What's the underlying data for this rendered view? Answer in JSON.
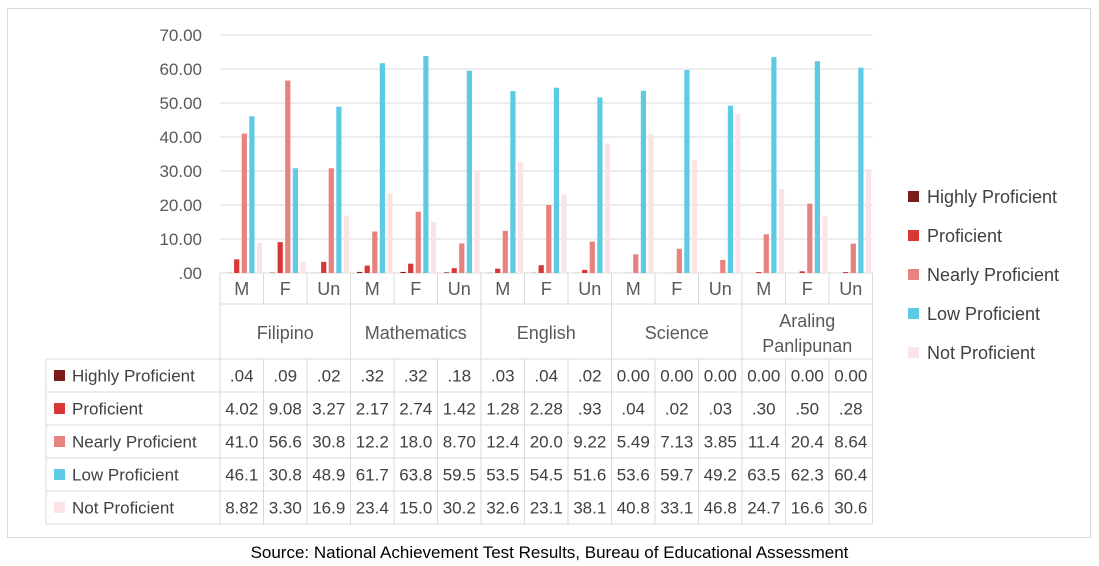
{
  "chart_data": {
    "type": "bar",
    "subjects": [
      "Filipino",
      "Mathematics",
      "English",
      "Science",
      "Araling Panlipunan"
    ],
    "subject_labels": [
      [
        "Filipino"
      ],
      [
        "Mathematics"
      ],
      [
        "English"
      ],
      [
        "Science"
      ],
      [
        "Araling",
        "Panlipunan"
      ]
    ],
    "subcategories": [
      "M",
      "F",
      "Un"
    ],
    "y_ticks": [
      ".00",
      "10.00",
      "20.00",
      "30.00",
      "40.00",
      "50.00",
      "60.00",
      "70.00"
    ],
    "ylim": [
      0,
      70
    ],
    "grid": true,
    "legend_position": "right",
    "series": [
      {
        "name": "Highly Proficient",
        "color": "#7b1c1c",
        "values": [
          0.04,
          0.09,
          0.02,
          0.32,
          0.32,
          0.18,
          0.03,
          0.04,
          0.02,
          0.0,
          0.0,
          0.0,
          0.0,
          0.0,
          0.0
        ],
        "labels": [
          ".04",
          ".09",
          ".02",
          ".32",
          ".32",
          ".18",
          ".03",
          ".04",
          ".02",
          "0.00",
          "0.00",
          "0.00",
          "0.00",
          "0.00",
          "0.00"
        ]
      },
      {
        "name": "Proficient",
        "color": "#d93636",
        "values": [
          4.02,
          9.08,
          3.27,
          2.17,
          2.74,
          1.42,
          1.28,
          2.28,
          0.93,
          0.04,
          0.02,
          0.03,
          0.3,
          0.5,
          0.28
        ],
        "labels": [
          "4.02",
          "9.08",
          "3.27",
          "2.17",
          "2.74",
          "1.42",
          "1.28",
          "2.28",
          ".93",
          ".04",
          ".02",
          ".03",
          ".30",
          ".50",
          ".28"
        ]
      },
      {
        "name": "Nearly Proficient",
        "color": "#e8827f",
        "values": [
          41.0,
          56.6,
          30.8,
          12.2,
          18.0,
          8.7,
          12.4,
          20.0,
          9.22,
          5.49,
          7.13,
          3.85,
          11.4,
          20.4,
          8.64
        ],
        "labels": [
          "41.0",
          "56.6",
          "30.8",
          "12.2",
          "18.0",
          "8.70",
          "12.4",
          "20.0",
          "9.22",
          "5.49",
          "7.13",
          "3.85",
          "11.4",
          "20.4",
          "8.64"
        ]
      },
      {
        "name": "Low Proficient",
        "color": "#5ccbe3",
        "values": [
          46.1,
          30.8,
          48.9,
          61.7,
          63.8,
          59.5,
          53.5,
          54.5,
          51.6,
          53.6,
          59.7,
          49.2,
          63.5,
          62.3,
          60.4
        ],
        "labels": [
          "46.1",
          "30.8",
          "48.9",
          "61.7",
          "63.8",
          "59.5",
          "53.5",
          "54.5",
          "51.6",
          "53.6",
          "59.7",
          "49.2",
          "63.5",
          "62.3",
          "60.4"
        ]
      },
      {
        "name": "Not Proficient",
        "color": "#fbe4e8",
        "values": [
          8.82,
          3.3,
          16.9,
          23.4,
          15.0,
          30.2,
          32.6,
          23.1,
          38.1,
          40.8,
          33.1,
          46.8,
          24.7,
          16.6,
          30.6
        ],
        "labels": [
          "8.82",
          "3.30",
          "16.9",
          "23.4",
          "15.0",
          "30.2",
          "32.6",
          "23.1",
          "38.1",
          "40.8",
          "33.1",
          "46.8",
          "24.7",
          "16.6",
          "30.6"
        ]
      }
    ]
  },
  "source_note": "Source: National Achievement Test Results, Bureau of Educational Assessment"
}
